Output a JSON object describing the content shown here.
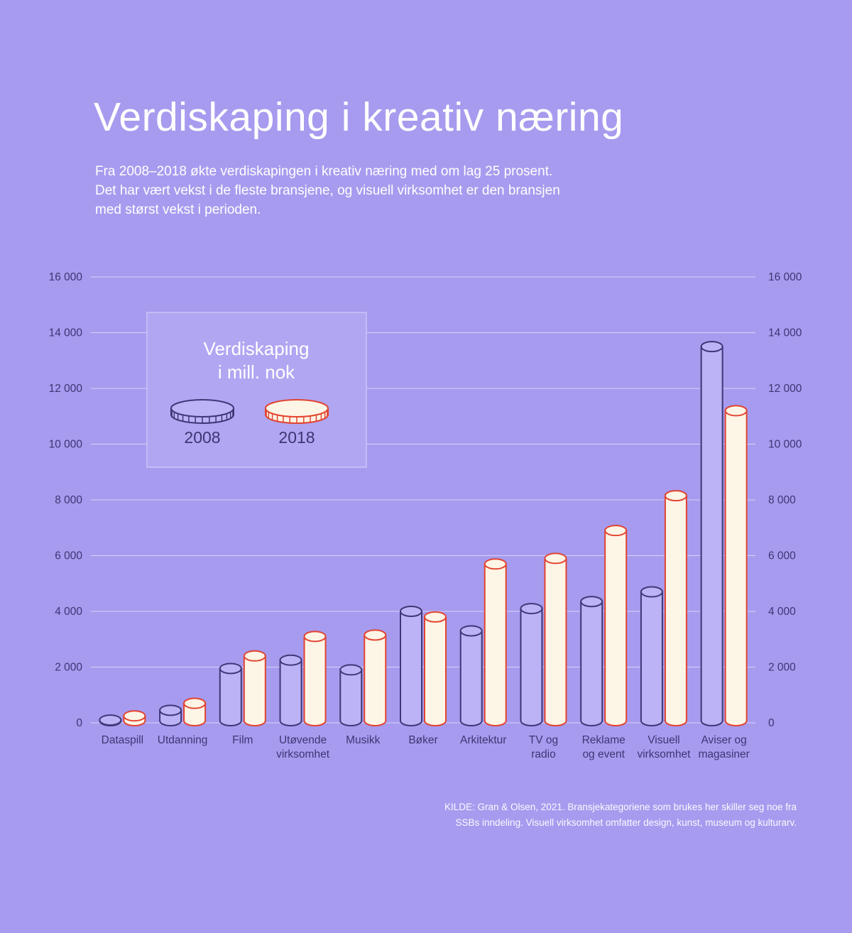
{
  "colors": {
    "background": "#a79bef",
    "title_text": "#ffffff",
    "axis_text": "#3b3673",
    "gridline": "rgba(255,255,255,0.55)",
    "bar2008_fill": "#bcb2f6",
    "bar2008_stroke": "#3d3877",
    "bar2018_fill": "#fdf5e6",
    "bar2018_stroke": "#e2442f",
    "legend_box_fill": "#b1a6f2",
    "legend_box_stroke": "#cbc3f8"
  },
  "header": {
    "title": "Verdiskaping i kreativ næring",
    "subtitle": "Fra 2008–2018 økte verdiskapingen i kreativ næring med om lag 25 prosent.\nDet har vært vekst i de fleste bransjene, og visuell virksomhet er den bransjen\nmed størst vekst i perioden."
  },
  "legend": {
    "title_line1": "Verdiskaping",
    "title_line2": "i mill. nok",
    "year_2008": "2008",
    "year_2018": "2018"
  },
  "source": "KILDE: Gran & Olsen, 2021. Bransjekategoriene som brukes her skiller seg noe fra\nSSBs inndeling. Visuell virksomhet omfatter design, kunst, museum og kulturarv.",
  "chart_data": {
    "type": "bar",
    "title": "Verdiskaping i mill. nok",
    "categories": [
      "Dataspill",
      "Utdanning",
      "Film",
      "Utøvende\nvirksomhet",
      "Musikk",
      "Bøker",
      "Arkitektur",
      "TV og\nradio",
      "Reklame\nog event",
      "Visuell\nvirksomhet",
      "Aviser og\nmagasiner"
    ],
    "series": [
      {
        "name": "2008",
        "values": [
          100,
          450,
          1950,
          2250,
          1900,
          4000,
          3300,
          4100,
          4350,
          4700,
          13500
        ]
      },
      {
        "name": "2018",
        "values": [
          250,
          700,
          2400,
          3100,
          3150,
          3800,
          5700,
          5900,
          6900,
          8150,
          11200
        ]
      }
    ],
    "ylim": [
      0,
      16000
    ],
    "ytick_values": [
      0,
      2000,
      4000,
      6000,
      8000,
      10000,
      12000,
      14000,
      16000
    ],
    "ytick_labels": [
      "0",
      "2 000",
      "4 000",
      "6 000",
      "8 000",
      "10 000",
      "12 000",
      "14 000",
      "16 000"
    ],
    "grid": "horizontal",
    "legend_position": "upper-left-box",
    "unit": "mill. NOK"
  }
}
